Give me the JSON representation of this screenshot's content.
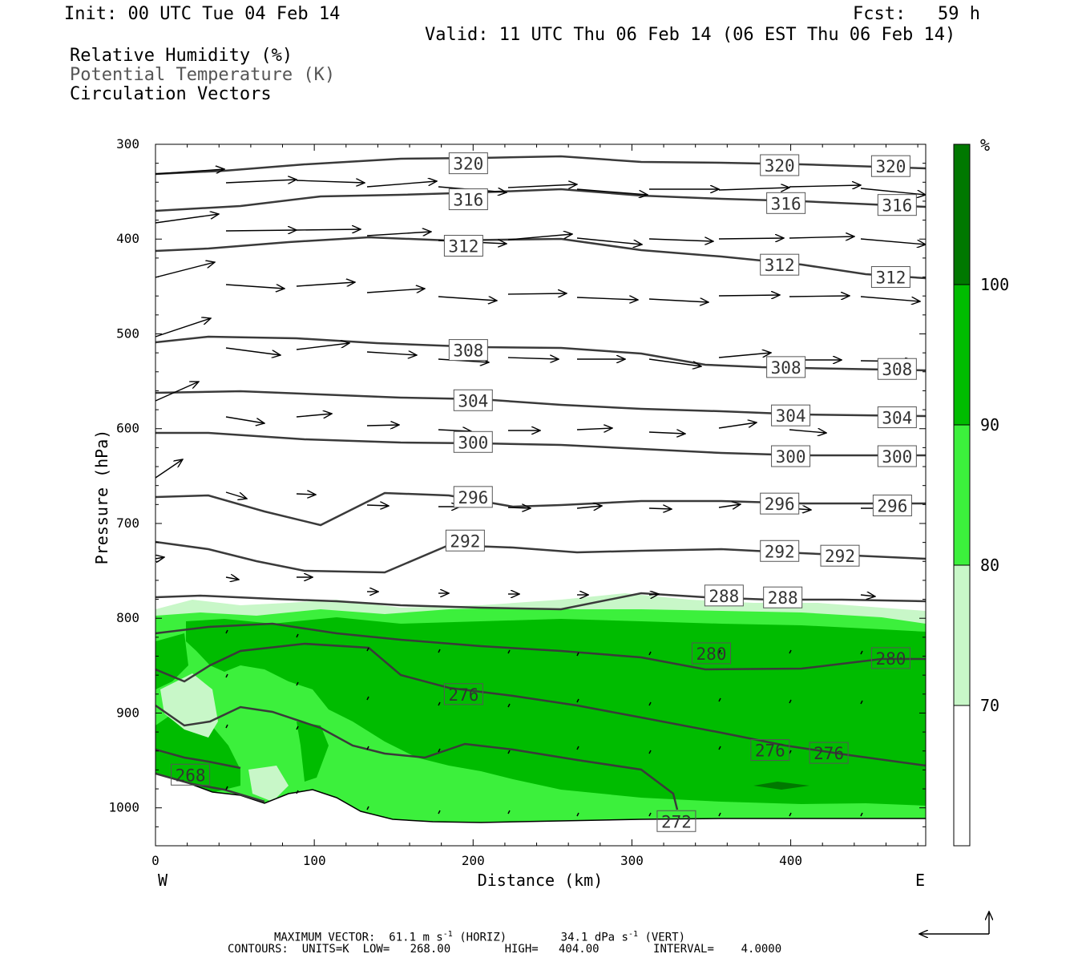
{
  "header": {
    "init": "Init: 00 UTC Tue 04 Feb 14",
    "fcst": "Fcst:   59 h",
    "valid": "Valid: 11 UTC Thu 06 Feb 14 (06 EST Thu 06 Feb 14)"
  },
  "legend_lines": {
    "rh": "Relative Humidity (%)",
    "theta": "Potential Temperature (K)",
    "vectors": "Circulation Vectors"
  },
  "footer": {
    "max_vector_label": "MAXIMUM VECTOR:",
    "max_vector_horiz": "61.1 m s",
    "horiz_suffix": "(HORIZ)",
    "max_vector_vert": "34.1 dPa s",
    "vert_suffix": "(VERT)",
    "exponent": "-1",
    "contours_line": "CONTOURS:  UNITS=K  LOW=   268.00        HIGH=   404.00        INTERVAL=    4.0000"
  },
  "colorbar": {
    "unit": "%",
    "levels": [
      "70",
      "80",
      "90",
      "100"
    ],
    "colors": [
      "#ffffff",
      "#c8f7c8",
      "#3cf03c",
      "#00bc00",
      "#007800"
    ]
  },
  "chart_data": {
    "type": "contour",
    "xlabel": "Distance (km)",
    "ylabel": "Pressure (hPa)",
    "xlim": [
      0,
      485
    ],
    "ylim": [
      1040,
      300
    ],
    "x_ticks": [
      "0",
      "100",
      "200",
      "300",
      "400"
    ],
    "y_ticks": [
      "300",
      "400",
      "500",
      "600",
      "700",
      "800",
      "900",
      "1000"
    ],
    "x_end_labels": {
      "left": "W",
      "right": "E"
    },
    "theta_contours": {
      "units": "K",
      "low": 268,
      "high": 404,
      "interval": 4,
      "labels": [
        {
          "value": "320",
          "x": 197,
          "p": 320
        },
        {
          "value": "320",
          "x": 393,
          "p": 322
        },
        {
          "value": "320",
          "x": 463,
          "p": 323
        },
        {
          "value": "316",
          "x": 197,
          "p": 358
        },
        {
          "value": "316",
          "x": 397,
          "p": 362
        },
        {
          "value": "316",
          "x": 467,
          "p": 364
        },
        {
          "value": "312",
          "x": 194,
          "p": 407
        },
        {
          "value": "312",
          "x": 393,
          "p": 427
        },
        {
          "value": "312",
          "x": 463,
          "p": 440
        },
        {
          "value": "308",
          "x": 197,
          "p": 517
        },
        {
          "value": "308",
          "x": 397,
          "p": 535
        },
        {
          "value": "308",
          "x": 467,
          "p": 537
        },
        {
          "value": "304",
          "x": 200,
          "p": 570
        },
        {
          "value": "304",
          "x": 400,
          "p": 586
        },
        {
          "value": "304",
          "x": 467,
          "p": 588
        },
        {
          "value": "300",
          "x": 200,
          "p": 614
        },
        {
          "value": "300",
          "x": 400,
          "p": 629
        },
        {
          "value": "300",
          "x": 467,
          "p": 629
        },
        {
          "value": "296",
          "x": 200,
          "p": 672
        },
        {
          "value": "296",
          "x": 393,
          "p": 679
        },
        {
          "value": "296",
          "x": 464,
          "p": 681
        },
        {
          "value": "292",
          "x": 195,
          "p": 718
        },
        {
          "value": "292",
          "x": 393,
          "p": 729
        },
        {
          "value": "292",
          "x": 431,
          "p": 734
        },
        {
          "value": "288",
          "x": 358,
          "p": 776
        },
        {
          "value": "288",
          "x": 395,
          "p": 778
        },
        {
          "value": "280",
          "x": 350,
          "p": 837
        },
        {
          "value": "280",
          "x": 463,
          "p": 842
        },
        {
          "value": "276",
          "x": 194,
          "p": 880
        },
        {
          "value": "276",
          "x": 387,
          "p": 939
        },
        {
          "value": "276",
          "x": 424,
          "p": 942
        },
        {
          "value": "272",
          "x": 328,
          "p": 1014
        },
        {
          "value": "268",
          "x": 22,
          "p": 965
        }
      ]
    }
  }
}
